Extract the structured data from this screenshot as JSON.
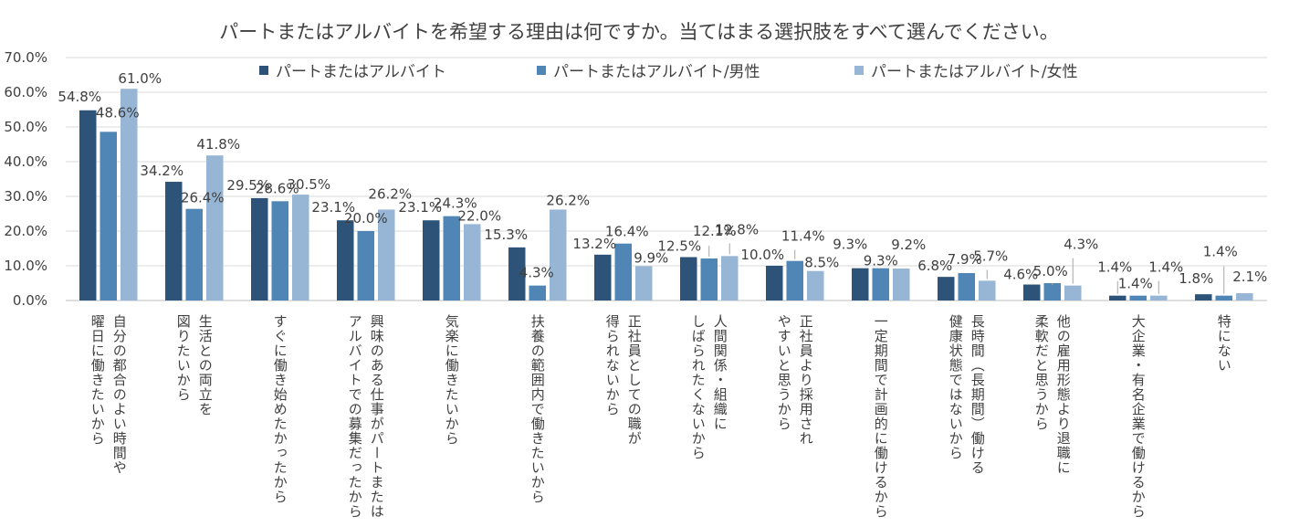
{
  "chart_data": {
    "type": "bar",
    "title": "パートまたはアルバイトを希望する理由は何ですか。当てはまる選択肢をすべて選んでください。",
    "ylim": [
      0,
      70
    ],
    "yticks": [
      "0.0%",
      "10.0%",
      "20.0%",
      "30.0%",
      "40.0%",
      "50.0%",
      "60.0%",
      "70.0%"
    ],
    "legend_position": "top",
    "categories": [
      [
        "自分の都合のよい時間や",
        "曜日に働きたいから"
      ],
      [
        "生活との両立を",
        "図りたいから"
      ],
      [
        "すぐに働き始めたかったから"
      ],
      [
        "興味のある仕事がパートまたは",
        "アルバイトでの募集だったから"
      ],
      [
        "気楽に働きたいから"
      ],
      [
        "扶養の範囲内で働きたいから"
      ],
      [
        "正社員としての職が",
        "得られないから"
      ],
      [
        "人間関係・組織に",
        "しばられたくないから"
      ],
      [
        "正社員より採用され",
        "やすいと思うから"
      ],
      [
        "一定期間で計画的に働けるから"
      ],
      [
        "長時間（長期間）働ける",
        "健康状態ではないから"
      ],
      [
        "他の雇用形態より退職に",
        "柔軟だと思うから"
      ],
      [
        "大企業・有名企業で働けるから"
      ],
      [
        "特にない"
      ]
    ],
    "series": [
      {
        "name": "パートまたはアルバイト",
        "color": "#2e5378",
        "values": [
          54.8,
          34.2,
          29.5,
          23.1,
          23.1,
          15.3,
          13.2,
          12.5,
          10.0,
          9.3,
          6.8,
          4.6,
          1.4,
          1.8
        ],
        "labels": [
          "54.8%",
          "34.2%",
          "29.5%",
          "23.1%",
          "23.1%",
          "15.3%",
          "13.2%",
          "12.5%",
          "10.0%",
          "9.3%",
          "6.8%",
          "4.6%",
          "1.4%",
          "1.8%"
        ]
      },
      {
        "name": "パートまたはアルバイト/男性",
        "color": "#4f86b5",
        "values": [
          48.6,
          26.4,
          28.6,
          20.0,
          24.3,
          4.3,
          16.4,
          12.1,
          11.4,
          9.3,
          7.9,
          5.0,
          1.4,
          1.4
        ],
        "labels": [
          "48.6%",
          "26.4%",
          "28.6%",
          "20.0%",
          "24.3%",
          "4.3%",
          "16.4%",
          "12.1%",
          "11.4%",
          "9.3%",
          "7.9%",
          "5.0%",
          "1.4%",
          "1.4%"
        ]
      },
      {
        "name": "パートまたはアルバイト/女性",
        "color": "#97b6d5",
        "values": [
          61.0,
          41.8,
          30.5,
          26.2,
          22.0,
          26.2,
          9.9,
          12.8,
          8.5,
          9.2,
          5.7,
          4.3,
          1.4,
          2.1
        ],
        "labels": [
          "61.0%",
          "41.8%",
          "30.5%",
          "26.2%",
          "22.0%",
          "26.2%",
          "9.9%",
          "12.8%",
          "8.5%",
          "9.2%",
          "5.7%",
          "4.3%",
          "1.4%",
          "2.1%"
        ]
      }
    ]
  }
}
